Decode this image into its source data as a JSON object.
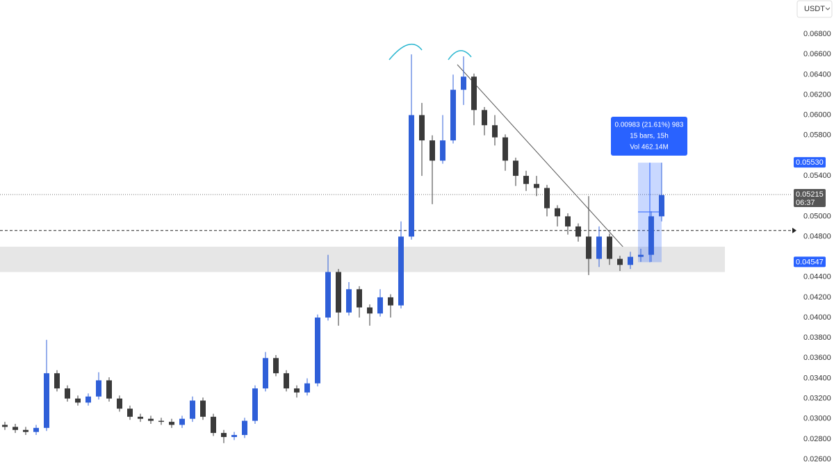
{
  "chart_data": {
    "type": "candlestick",
    "currency": "USDT",
    "up_color": "#2f5fd8",
    "down_color": "#3a3a3a",
    "open": [
      0.0294,
      0.0292,
      0.0289,
      0.0287,
      0.0291,
      0.0345,
      0.033,
      0.032,
      0.0316,
      0.0322,
      0.0338,
      0.032,
      0.031,
      0.0302,
      0.03,
      0.0298,
      0.0297,
      0.0294,
      0.03,
      0.0318,
      0.0302,
      0.0286,
      0.0282,
      0.0284,
      0.0298,
      0.033,
      0.036,
      0.0345,
      0.033,
      0.0326,
      0.0335,
      0.04,
      0.0445,
      0.0405,
      0.0428,
      0.041,
      0.0404,
      0.042,
      0.0412,
      0.048,
      0.06,
      0.0575,
      0.0555,
      0.0575,
      0.0625,
      0.0638,
      0.0605,
      0.059,
      0.0578,
      0.0555,
      0.054,
      0.0532,
      0.0528,
      0.0508,
      0.05,
      0.049,
      0.048,
      0.0458,
      0.048,
      0.0458,
      0.0452,
      0.046,
      0.0462,
      0.05
    ],
    "high": [
      0.0297,
      0.0295,
      0.0292,
      0.0294,
      0.0378,
      0.0348,
      0.0333,
      0.0323,
      0.0325,
      0.0346,
      0.0341,
      0.0323,
      0.0313,
      0.0305,
      0.0303,
      0.0301,
      0.03,
      0.0303,
      0.0322,
      0.0321,
      0.0305,
      0.0289,
      0.0287,
      0.0301,
      0.0333,
      0.0366,
      0.0363,
      0.0348,
      0.0333,
      0.034,
      0.0403,
      0.0462,
      0.0448,
      0.0435,
      0.0431,
      0.0413,
      0.0428,
      0.0423,
      0.0495,
      0.066,
      0.0612,
      0.058,
      0.06,
      0.064,
      0.0658,
      0.0641,
      0.0608,
      0.06,
      0.0581,
      0.0558,
      0.0545,
      0.054,
      0.0531,
      0.0511,
      0.0503,
      0.0493,
      0.052,
      0.049,
      0.0483,
      0.0461,
      0.0465,
      0.0468,
      0.0505,
      0.0553
    ],
    "low": [
      0.0289,
      0.0286,
      0.0284,
      0.0284,
      0.0288,
      0.0327,
      0.0317,
      0.0313,
      0.0313,
      0.0319,
      0.0317,
      0.0307,
      0.0299,
      0.0297,
      0.0295,
      0.0294,
      0.0291,
      0.0291,
      0.0297,
      0.0299,
      0.0283,
      0.0276,
      0.0279,
      0.0281,
      0.0295,
      0.0327,
      0.0342,
      0.0327,
      0.0321,
      0.0323,
      0.0332,
      0.0397,
      0.0392,
      0.0402,
      0.04,
      0.0392,
      0.0401,
      0.04,
      0.0409,
      0.0477,
      0.054,
      0.0512,
      0.0552,
      0.0572,
      0.061,
      0.059,
      0.058,
      0.057,
      0.0545,
      0.053,
      0.0525,
      0.052,
      0.05,
      0.049,
      0.0482,
      0.0475,
      0.0442,
      0.045,
      0.0452,
      0.0446,
      0.0448,
      0.0455,
      0.0455,
      0.0495
    ],
    "close": [
      0.0292,
      0.0289,
      0.0287,
      0.0291,
      0.0345,
      0.033,
      0.032,
      0.0316,
      0.0322,
      0.0338,
      0.032,
      0.031,
      0.0302,
      0.03,
      0.0298,
      0.0297,
      0.0294,
      0.03,
      0.0318,
      0.0302,
      0.0286,
      0.0282,
      0.0284,
      0.0298,
      0.033,
      0.036,
      0.0345,
      0.033,
      0.0326,
      0.0335,
      0.04,
      0.0445,
      0.0405,
      0.0428,
      0.041,
      0.0404,
      0.042,
      0.0412,
      0.048,
      0.06,
      0.0575,
      0.0555,
      0.0575,
      0.0625,
      0.0638,
      0.0605,
      0.059,
      0.0578,
      0.0555,
      0.054,
      0.0532,
      0.0528,
      0.0508,
      0.05,
      0.049,
      0.048,
      0.0458,
      0.048,
      0.0458,
      0.0452,
      0.046,
      0.0462,
      0.05,
      0.0521
    ],
    "ylim": [
      0.02504,
      0.07137
    ],
    "yticks": [
      {
        "value": 0.026,
        "label": "0.02600"
      },
      {
        "value": 0.028,
        "label": "0.02800"
      },
      {
        "value": 0.03,
        "label": "0.03000"
      },
      {
        "value": 0.032,
        "label": "0.03200"
      },
      {
        "value": 0.034,
        "label": "0.03400"
      },
      {
        "value": 0.036,
        "label": "0.03600"
      },
      {
        "value": 0.038,
        "label": "0.03800"
      },
      {
        "value": 0.04,
        "label": "0.04000"
      },
      {
        "value": 0.042,
        "label": "0.04200"
      },
      {
        "value": 0.044,
        "label": "0.04400"
      },
      {
        "value": 0.048,
        "label": "0.04800"
      },
      {
        "value": 0.05,
        "label": "0.05000"
      },
      {
        "value": 0.054,
        "label": "0.05400"
      },
      {
        "value": 0.058,
        "label": "0.05800"
      },
      {
        "value": 0.06,
        "label": "0.06000"
      },
      {
        "value": 0.062,
        "label": "0.06200"
      },
      {
        "value": 0.064,
        "label": "0.06400"
      },
      {
        "value": 0.066,
        "label": "0.06600"
      },
      {
        "value": 0.068,
        "label": "0.06800"
      }
    ],
    "price_markers": [
      {
        "value": 0.0553,
        "label": "0.05530",
        "color": "#2962ff"
      },
      {
        "value": 0.04547,
        "label": "0.04547",
        "color": "#2962ff"
      },
      {
        "value": 0.05215,
        "label": "0.05215",
        "color": "#555555",
        "sublabel": "06:37"
      }
    ],
    "level_line": 0.0486,
    "zone": [
      0.0445,
      0.047
    ],
    "measure": {
      "lines": [
        "0.00983 (21.61%) 983",
        "15 bars, 15h",
        "Vol 462.14M"
      ],
      "low": 0.04547,
      "high": 0.0553
    }
  }
}
